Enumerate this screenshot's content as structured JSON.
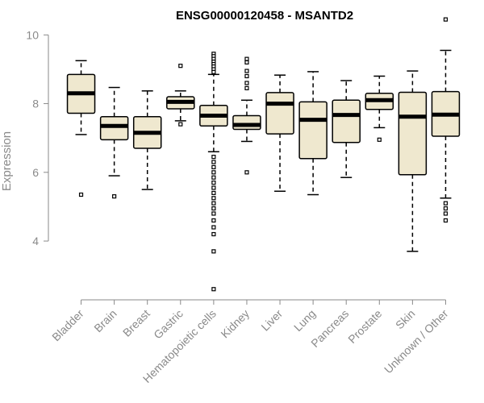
{
  "chart_data": {
    "type": "boxplot",
    "title": "ENSG00000120458 - MSANTD2",
    "xlabel": "",
    "ylabel": "Expression",
    "ylim": [
      2.5,
      10.5
    ],
    "yticks": [
      4,
      6,
      8,
      10
    ],
    "grid": false,
    "colors": {
      "box_fill": "#efe8cf",
      "box_stroke": "#000000",
      "axis": "#8a8a8a"
    },
    "categories": [
      "Bladder",
      "Brain",
      "Breast",
      "Gastric",
      "Hematopoietic cells",
      "Kidney",
      "Liver",
      "Lung",
      "Pancreas",
      "Prostate",
      "Skin",
      "Unknown / Other"
    ],
    "boxes": [
      {
        "category": "Bladder",
        "whisker_low": 7.1,
        "q1": 7.72,
        "median": 8.3,
        "q3": 8.85,
        "whisker_high": 9.25,
        "outliers": [
          5.35
        ]
      },
      {
        "category": "Brain",
        "whisker_low": 5.9,
        "q1": 6.95,
        "median": 7.35,
        "q3": 7.62,
        "whisker_high": 8.47,
        "outliers": [
          5.3
        ]
      },
      {
        "category": "Breast",
        "whisker_low": 5.5,
        "q1": 6.7,
        "median": 7.15,
        "q3": 7.62,
        "whisker_high": 8.37,
        "outliers": []
      },
      {
        "category": "Gastric",
        "whisker_low": 7.5,
        "q1": 7.85,
        "median": 8.05,
        "q3": 8.2,
        "whisker_high": 8.37,
        "outliers": [
          9.1,
          7.4
        ]
      },
      {
        "category": "Hematopoietic cells",
        "whisker_low": 6.6,
        "q1": 7.35,
        "median": 7.65,
        "q3": 7.95,
        "whisker_high": 8.85,
        "outliers": [
          9.45,
          9.38,
          9.3,
          9.22,
          9.15,
          9.08,
          9.0,
          8.92,
          6.45,
          6.3,
          6.15,
          6.0,
          5.85,
          5.7,
          5.55,
          5.4,
          5.25,
          5.1,
          4.95,
          4.8,
          4.6,
          4.4,
          4.2,
          3.7,
          2.6
        ]
      },
      {
        "category": "Kidney",
        "whisker_low": 6.9,
        "q1": 7.25,
        "median": 7.38,
        "q3": 7.65,
        "whisker_high": 8.1,
        "outliers": [
          9.3,
          9.2,
          8.95,
          8.8,
          8.6,
          8.45,
          6.0
        ]
      },
      {
        "category": "Liver",
        "whisker_low": 5.45,
        "q1": 7.12,
        "median": 8.0,
        "q3": 8.32,
        "whisker_high": 8.83,
        "outliers": []
      },
      {
        "category": "Lung",
        "whisker_low": 5.35,
        "q1": 6.4,
        "median": 7.53,
        "q3": 8.05,
        "whisker_high": 8.93,
        "outliers": []
      },
      {
        "category": "Pancreas",
        "whisker_low": 5.85,
        "q1": 6.87,
        "median": 7.67,
        "q3": 8.1,
        "whisker_high": 8.67,
        "outliers": []
      },
      {
        "category": "Prostate",
        "whisker_low": 7.3,
        "q1": 7.83,
        "median": 8.1,
        "q3": 8.3,
        "whisker_high": 8.8,
        "outliers": [
          6.95
        ]
      },
      {
        "category": "Skin",
        "whisker_low": 3.7,
        "q1": 5.93,
        "median": 7.62,
        "q3": 8.33,
        "whisker_high": 8.95,
        "outliers": []
      },
      {
        "category": "Unknown / Other",
        "whisker_low": 5.25,
        "q1": 7.05,
        "median": 7.68,
        "q3": 8.35,
        "whisker_high": 9.55,
        "outliers": [
          10.45,
          5.1,
          4.95,
          4.8,
          4.6
        ]
      }
    ]
  }
}
